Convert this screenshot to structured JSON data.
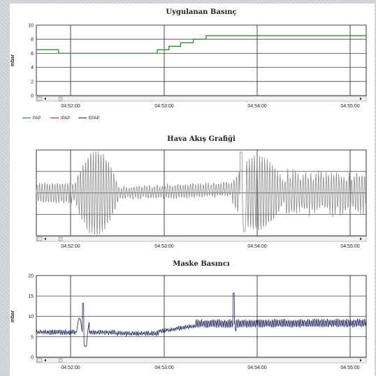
{
  "chart_data": [
    {
      "type": "line",
      "title": "Uygulanan Basınç",
      "ylabel": "mbar",
      "ylim": [
        0,
        10
      ],
      "yticks": [
        0,
        2,
        4,
        6,
        8,
        10
      ],
      "x_labels": [
        "04:52:00",
        "04:53:00",
        "04:54:00",
        "04:55:00"
      ],
      "grid": true,
      "legend": [
        "PAP",
        "IPAP",
        "EPAP"
      ],
      "legend_position": "bottom-left",
      "series": [
        {
          "name": "PAP",
          "color": "#2e8b3c",
          "step": true,
          "points": [
            [
              0,
              6.5
            ],
            [
              0.2,
              6.5
            ],
            [
              0.21,
              6.0
            ],
            [
              1.13,
              6.0
            ],
            [
              1.14,
              6.5
            ],
            [
              1.24,
              6.5
            ],
            [
              1.25,
              7.0
            ],
            [
              1.35,
              7.0
            ],
            [
              1.36,
              7.5
            ],
            [
              1.47,
              7.5
            ],
            [
              1.48,
              8.0
            ],
            [
              1.59,
              8.0
            ],
            [
              1.6,
              8.5
            ],
            [
              3.11,
              8.5
            ]
          ]
        },
        {
          "name": "IPAP",
          "color": "#e02020",
          "points": []
        },
        {
          "name": "EPAP",
          "color": "#303080",
          "points": []
        }
      ]
    },
    {
      "type": "line",
      "title": "Hava Akış Grafiği",
      "ylim": [
        -1,
        1
      ],
      "x_labels": [
        "04:52:00",
        "04:53:00",
        "04:54:00",
        "04:55:00"
      ],
      "grid": true,
      "series": [
        {
          "name": "",
          "color": "#8a8a8a",
          "generated": "flow"
        }
      ]
    },
    {
      "type": "line",
      "title": "Maske Basıncı",
      "ylabel": "mbar",
      "ylim": [
        0,
        20
      ],
      "yticks": [
        0,
        5,
        10,
        15,
        20
      ],
      "x_labels": [
        "04:52:00",
        "04:53:00",
        "04:54:00",
        "04:55:00"
      ],
      "grid": true,
      "series": [
        {
          "name": "",
          "color": "#1f1f5e",
          "generated": "mask"
        }
      ]
    }
  ]
}
